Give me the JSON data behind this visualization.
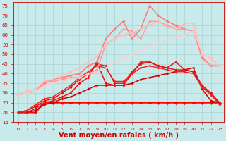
{
  "background_color": "#c8eaea",
  "grid_color": "#b0d8d8",
  "xlabel": "Vent moyen/en rafales ( km/h )",
  "xlabel_color": "#cc0000",
  "xlabel_fontsize": 7,
  "xlim": [
    -0.5,
    23.5
  ],
  "ylim": [
    15,
    77
  ],
  "yticks": [
    15,
    20,
    25,
    30,
    35,
    40,
    45,
    50,
    55,
    60,
    65,
    70,
    75
  ],
  "xticks": [
    0,
    1,
    2,
    3,
    4,
    5,
    6,
    7,
    8,
    9,
    10,
    11,
    12,
    13,
    14,
    15,
    16,
    17,
    18,
    19,
    20,
    21,
    22,
    23
  ],
  "lines": [
    {
      "x": [
        0,
        1,
        2,
        3,
        4,
        5,
        6,
        7,
        8,
        9,
        10,
        11,
        12,
        13,
        14,
        15,
        16,
        17,
        18,
        19,
        20,
        21,
        22,
        23
      ],
      "y": [
        20,
        20,
        20,
        25,
        25,
        25,
        25,
        25,
        25,
        25,
        25,
        25,
        25,
        25,
        25,
        25,
        25,
        25,
        25,
        25,
        25,
        25,
        25,
        25
      ],
      "color": "#ff0000",
      "lw": 1.4,
      "marker": "D",
      "ms": 2.5
    },
    {
      "x": [
        0,
        1,
        2,
        3,
        4,
        5,
        6,
        7,
        8,
        9,
        10,
        11,
        12,
        13,
        14,
        15,
        16,
        17,
        18,
        19,
        20,
        21,
        22,
        23
      ],
      "y": [
        20,
        20,
        21,
        24,
        25,
        27,
        28,
        30,
        32,
        34,
        34,
        34,
        34,
        35,
        37,
        38,
        39,
        40,
        41,
        42,
        43,
        32,
        26,
        25
      ],
      "color": "#cc0000",
      "lw": 1.1,
      "marker": "D",
      "ms": 2
    },
    {
      "x": [
        0,
        1,
        2,
        3,
        4,
        5,
        6,
        7,
        8,
        9,
        10,
        11,
        12,
        13,
        14,
        15,
        16,
        17,
        18,
        19,
        20,
        21,
        22,
        23
      ],
      "y": [
        20,
        20,
        22,
        25,
        26,
        28,
        30,
        35,
        38,
        46,
        35,
        34,
        34,
        40,
        46,
        46,
        44,
        43,
        46,
        42,
        41,
        33,
        30,
        25
      ],
      "color": "#ee1111",
      "lw": 1.1,
      "marker": "D",
      "ms": 2
    },
    {
      "x": [
        0,
        1,
        2,
        3,
        4,
        5,
        6,
        7,
        8,
        9,
        10,
        11,
        12,
        13,
        14,
        15,
        16,
        17,
        18,
        19,
        20,
        21,
        22,
        23
      ],
      "y": [
        20,
        21,
        23,
        26,
        27,
        30,
        33,
        37,
        40,
        45,
        44,
        35,
        35,
        41,
        45,
        46,
        44,
        43,
        42,
        42,
        41,
        34,
        30,
        24
      ],
      "color": "#dd1111",
      "lw": 1.0,
      "marker": "D",
      "ms": 2
    },
    {
      "x": [
        0,
        1,
        2,
        3,
        4,
        5,
        6,
        7,
        8,
        9,
        10,
        11,
        12,
        13,
        14,
        15,
        16,
        17,
        18,
        19,
        20,
        21,
        22,
        23
      ],
      "y": [
        20,
        21,
        24,
        27,
        28,
        31,
        34,
        38,
        41,
        44,
        43,
        36,
        36,
        40,
        43,
        44,
        43,
        42,
        41,
        41,
        40,
        33,
        29,
        24
      ],
      "color": "#ee2222",
      "lw": 1.0,
      "marker": "D",
      "ms": 2
    },
    {
      "x": [
        0,
        1,
        2,
        3,
        4,
        5,
        6,
        7,
        8,
        9,
        10,
        11,
        12,
        13,
        14,
        15,
        16,
        17,
        18,
        19,
        20,
        21,
        22,
        23
      ],
      "y": [
        29,
        30,
        31,
        35,
        37,
        38,
        39,
        40,
        44,
        46,
        58,
        63,
        67,
        58,
        63,
        75,
        70,
        67,
        65,
        63,
        62,
        48,
        44,
        44
      ],
      "color": "#ff7777",
      "lw": 1.1,
      "marker": "D",
      "ms": 2
    },
    {
      "x": [
        0,
        1,
        2,
        3,
        4,
        5,
        6,
        7,
        8,
        9,
        10,
        11,
        12,
        13,
        14,
        15,
        16,
        17,
        18,
        19,
        20,
        21,
        22,
        23
      ],
      "y": [
        29,
        30,
        31,
        36,
        36,
        37,
        38,
        38,
        40,
        42,
        55,
        58,
        63,
        62,
        58,
        67,
        67,
        65,
        63,
        63,
        62,
        49,
        44,
        44
      ],
      "color": "#ff9999",
      "lw": 1.1,
      "marker": "D",
      "ms": 2
    },
    {
      "x": [
        0,
        1,
        2,
        3,
        4,
        5,
        6,
        7,
        8,
        9,
        10,
        11,
        12,
        13,
        14,
        15,
        16,
        17,
        18,
        19,
        20,
        21,
        22,
        23
      ],
      "y": [
        29,
        31,
        32,
        36,
        37,
        39,
        41,
        43,
        46,
        49,
        55,
        58,
        60,
        61,
        63,
        65,
        67,
        64,
        63,
        66,
        66,
        50,
        48,
        44
      ],
      "color": "#ffbbbb",
      "lw": 1.1,
      "marker": "D",
      "ms": 2
    },
    {
      "x": [
        0,
        1,
        2,
        3,
        4,
        5,
        6,
        7,
        8,
        9,
        10,
        11,
        12,
        13,
        14,
        15,
        16,
        17,
        18,
        19,
        20,
        21,
        22,
        23
      ],
      "y": [
        29,
        30,
        31,
        34,
        35,
        36,
        37,
        38,
        40,
        41,
        43,
        46,
        48,
        50,
        52,
        54,
        56,
        57,
        59,
        60,
        62,
        51,
        47,
        44
      ],
      "color": "#ffcccc",
      "lw": 1.0,
      "marker": "D",
      "ms": 2
    }
  ]
}
